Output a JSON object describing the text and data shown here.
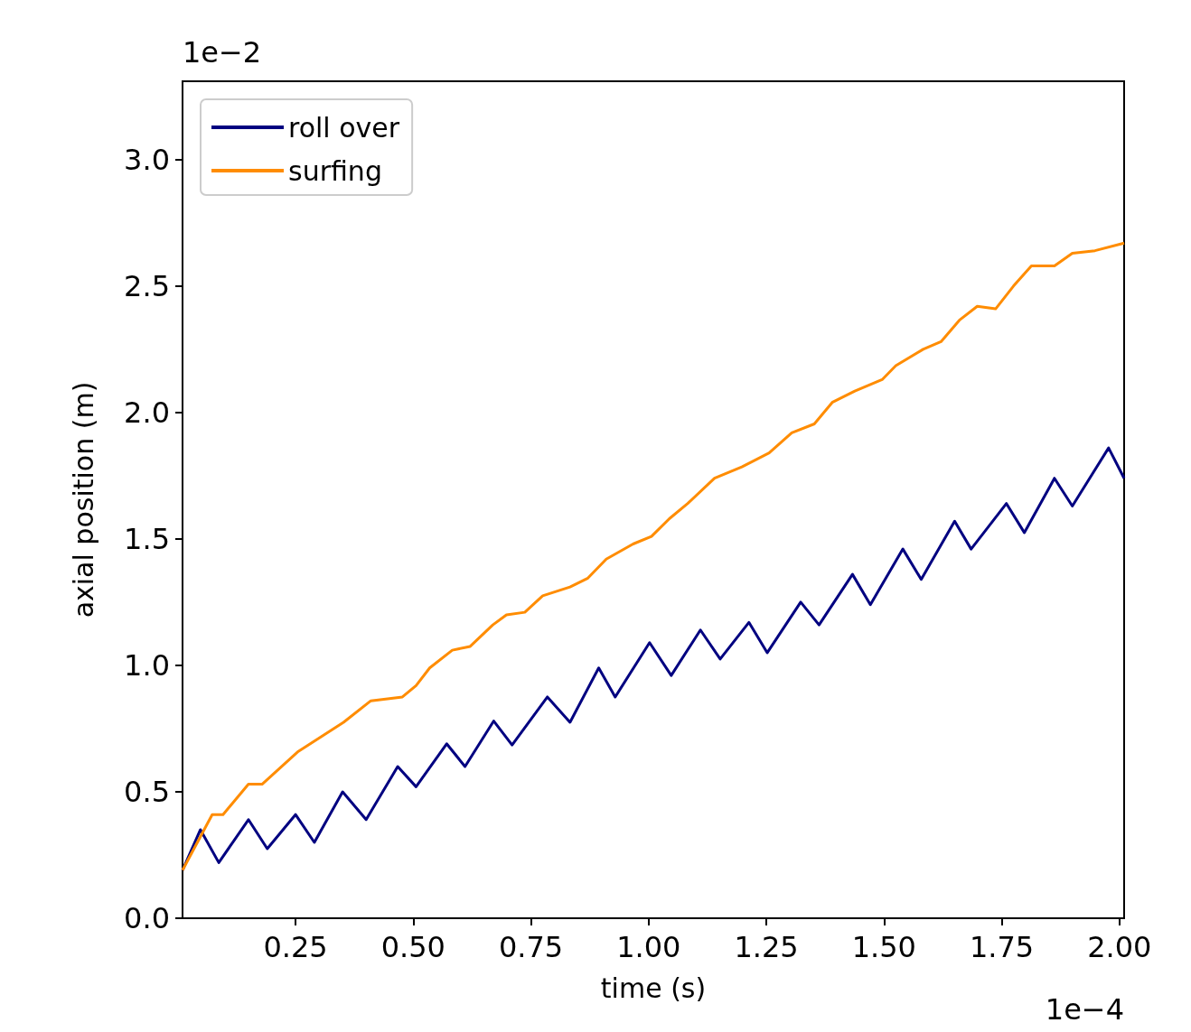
{
  "chart_data": {
    "type": "line",
    "xlabel": "time (s)",
    "ylabel": "axial position (m)",
    "annotations": [
      "1e−2",
      "1e−4"
    ],
    "xlim": [
      0.01,
      2.01
    ],
    "ylim": [
      0,
      3.31
    ],
    "xticks": [
      0.25,
      {
        "value": 0.5,
        "label": "0.50"
      },
      0.75,
      {
        "value": 1,
        "label": "1.00"
      },
      1.25,
      {
        "value": 1.5,
        "label": "1.50"
      },
      1.75,
      {
        "value": 2,
        "label": "2.00"
      }
    ],
    "yticks": [
      {
        "value": 0,
        "label": "0.0"
      },
      0.5,
      {
        "value": 1,
        "label": "1.0"
      },
      1.5,
      {
        "value": 2,
        "label": "2.0"
      },
      2.5,
      {
        "value": 3,
        "label": "3.0"
      }
    ],
    "grid": false,
    "legend": "top left",
    "marker": "none",
    "line_style": "solid",
    "series": [
      {
        "name": "roll over",
        "color": "#000080",
        "x": [
          0.01,
          0.048,
          0.087,
          0.15,
          0.19,
          0.25,
          0.29,
          0.35,
          0.4,
          0.467,
          0.506,
          0.571,
          0.61,
          0.671,
          0.71,
          0.785,
          0.833,
          0.894,
          0.929,
          1.002,
          1.048,
          1.11,
          1.152,
          1.213,
          1.252,
          1.323,
          1.362,
          1.433,
          1.471,
          1.54,
          1.579,
          1.65,
          1.685,
          1.76,
          1.798,
          1.862,
          1.9,
          1.977,
          2.01
        ],
        "values": [
          0.19,
          0.35,
          0.22,
          0.39,
          0.275,
          0.41,
          0.3,
          0.5,
          0.39,
          0.6,
          0.52,
          0.69,
          0.6,
          0.78,
          0.685,
          0.875,
          0.775,
          0.99,
          0.875,
          1.09,
          0.96,
          1.14,
          1.025,
          1.17,
          1.05,
          1.25,
          1.16,
          1.36,
          1.24,
          1.46,
          1.34,
          1.57,
          1.46,
          1.64,
          1.525,
          1.74,
          1.63,
          1.86,
          1.74
        ]
      },
      {
        "name": "surfing",
        "color": "#ff8c00",
        "x": [
          0.01,
          0.073,
          0.096,
          0.15,
          0.179,
          0.256,
          0.352,
          0.41,
          0.477,
          0.506,
          0.535,
          0.583,
          0.621,
          0.669,
          0.698,
          0.737,
          0.775,
          0.833,
          0.871,
          0.91,
          0.967,
          1.006,
          1.044,
          1.083,
          1.14,
          1.198,
          1.256,
          1.304,
          1.352,
          1.39,
          1.438,
          1.496,
          1.525,
          1.583,
          1.621,
          1.66,
          1.698,
          1.737,
          1.775,
          1.813,
          1.862,
          1.9,
          1.948,
          2.01
        ],
        "values": [
          0.19,
          0.41,
          0.41,
          0.53,
          0.53,
          0.66,
          0.775,
          0.86,
          0.875,
          0.92,
          0.99,
          1.06,
          1.075,
          1.16,
          1.2,
          1.21,
          1.275,
          1.31,
          1.345,
          1.42,
          1.48,
          1.51,
          1.58,
          1.64,
          1.74,
          1.785,
          1.84,
          1.92,
          1.955,
          2.04,
          2.085,
          2.13,
          2.185,
          2.25,
          2.28,
          2.365,
          2.42,
          2.41,
          2.5,
          2.58,
          2.58,
          2.63,
          2.64,
          2.67
        ]
      }
    ]
  }
}
